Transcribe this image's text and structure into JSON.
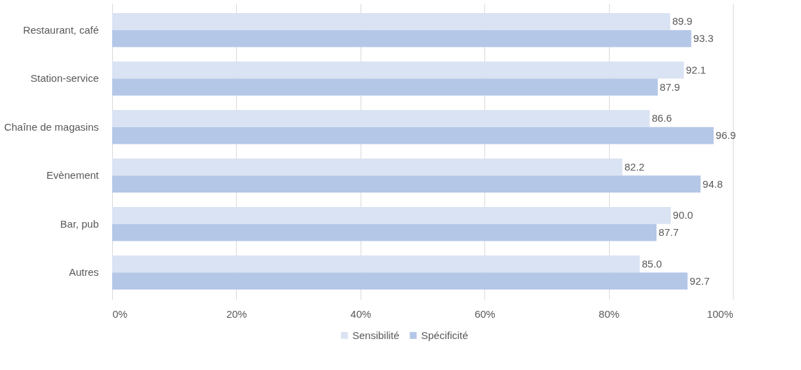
{
  "chart_data": {
    "type": "bar",
    "orientation": "horizontal",
    "categories": [
      "Restaurant, café",
      "Station-service",
      "Chaîne de magasins",
      "Evènement",
      "Bar, pub",
      "Autres"
    ],
    "series": [
      {
        "name": "Sensibilité",
        "color": "#dae3f3",
        "values": [
          89.9,
          92.1,
          86.6,
          82.2,
          90.0,
          85.0
        ],
        "value_labels": [
          "89.9",
          "92.1",
          "86.6",
          "82.2",
          "90.0",
          "85.0"
        ]
      },
      {
        "name": "Spécificité",
        "color": "#b4c7e7",
        "values": [
          93.3,
          87.9,
          96.9,
          94.8,
          87.7,
          92.7
        ],
        "value_labels": [
          "93.3",
          "87.9",
          "96.9",
          "94.8",
          "87.7",
          "92.7"
        ]
      }
    ],
    "xlim": [
      0,
      100
    ],
    "xticks": [
      {
        "value": 0,
        "label": "0%"
      },
      {
        "value": 20,
        "label": "20%"
      },
      {
        "value": 40,
        "label": "40%"
      },
      {
        "value": 60,
        "label": "60%"
      },
      {
        "value": 80,
        "label": "80%"
      },
      {
        "value": 100,
        "label": "100%"
      }
    ],
    "grid": "x",
    "legend": "bottom"
  }
}
